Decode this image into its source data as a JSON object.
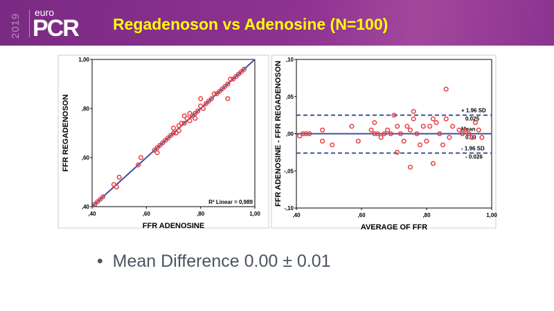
{
  "header": {
    "year": "2019",
    "logo_top": "euro",
    "logo_main": "PCR",
    "title": "Regadenoson vs Adenosine (N=100)"
  },
  "bullet": {
    "symbol": "•",
    "text": "Mean Difference 0.00 ± 0.01"
  },
  "chart_data": [
    {
      "type": "scatter",
      "xlabel": "FFR ADENOSINE",
      "ylabel": "FFR REGADENOSON",
      "xlim": [
        0.4,
        1.0
      ],
      "ylim": [
        0.4,
        1.0
      ],
      "xticks": [
        ",40",
        ",60",
        ",80",
        "1,00"
      ],
      "yticks": [
        ",40",
        ",60",
        ",80",
        "1,00"
      ],
      "annotation": "R² Linear = 0,989",
      "marker_color": "#e8393c",
      "line_color": "#3a4f9a",
      "fit_line": {
        "x": [
          0.4,
          1.0
        ],
        "y": [
          0.4,
          1.0
        ]
      },
      "points": [
        [
          0.41,
          0.41
        ],
        [
          0.42,
          0.42
        ],
        [
          0.43,
          0.43
        ],
        [
          0.44,
          0.44
        ],
        [
          0.48,
          0.49
        ],
        [
          0.49,
          0.48
        ],
        [
          0.5,
          0.52
        ],
        [
          0.57,
          0.57
        ],
        [
          0.58,
          0.6
        ],
        [
          0.63,
          0.63
        ],
        [
          0.64,
          0.64
        ],
        [
          0.64,
          0.62
        ],
        [
          0.65,
          0.65
        ],
        [
          0.66,
          0.66
        ],
        [
          0.67,
          0.67
        ],
        [
          0.68,
          0.68
        ],
        [
          0.69,
          0.69
        ],
        [
          0.7,
          0.7
        ],
        [
          0.7,
          0.72
        ],
        [
          0.71,
          0.7
        ],
        [
          0.72,
          0.73
        ],
        [
          0.72,
          0.71
        ],
        [
          0.73,
          0.74
        ],
        [
          0.74,
          0.77
        ],
        [
          0.74,
          0.74
        ],
        [
          0.75,
          0.76
        ],
        [
          0.76,
          0.75
        ],
        [
          0.76,
          0.78
        ],
        [
          0.77,
          0.77
        ],
        [
          0.78,
          0.78
        ],
        [
          0.78,
          0.76
        ],
        [
          0.79,
          0.79
        ],
        [
          0.8,
          0.81
        ],
        [
          0.8,
          0.84
        ],
        [
          0.81,
          0.8
        ],
        [
          0.82,
          0.82
        ],
        [
          0.83,
          0.83
        ],
        [
          0.84,
          0.84
        ],
        [
          0.85,
          0.86
        ],
        [
          0.86,
          0.86
        ],
        [
          0.87,
          0.87
        ],
        [
          0.88,
          0.88
        ],
        [
          0.89,
          0.89
        ],
        [
          0.9,
          0.9
        ],
        [
          0.9,
          0.84
        ],
        [
          0.91,
          0.92
        ],
        [
          0.92,
          0.92
        ],
        [
          0.93,
          0.93
        ],
        [
          0.94,
          0.94
        ],
        [
          0.95,
          0.95
        ],
        [
          0.96,
          0.96
        ]
      ]
    },
    {
      "type": "scatter",
      "xlabel": "AVERAGE OF FFR",
      "ylabel": "FFR ADENOSINE - FFR REGADENOSON",
      "xlim": [
        0.4,
        1.0
      ],
      "ylim": [
        -0.1,
        0.1
      ],
      "xticks": [
        ",40",
        ",60",
        ",80",
        "1,00"
      ],
      "yticks": [
        ",10",
        ",05",
        ",00",
        "-,05",
        "-,10"
      ],
      "reference_lines": [
        {
          "label": "+ 1.96 SD",
          "value_label": "0.025",
          "y": 0.025,
          "style": "dashed"
        },
        {
          "label": "Mean",
          "value_label": "0.00",
          "y": 0.0,
          "style": "solid"
        },
        {
          "label": "- 1.96 SD",
          "value_label": "- 0.026",
          "y": -0.026,
          "style": "dashed"
        }
      ],
      "marker_color": "#e8393c",
      "line_color": "#3a4f9a",
      "points": [
        [
          0.41,
          -0.003
        ],
        [
          0.42,
          0
        ],
        [
          0.43,
          0
        ],
        [
          0.44,
          0
        ],
        [
          0.48,
          0.005
        ],
        [
          0.48,
          -0.01
        ],
        [
          0.51,
          -0.015
        ],
        [
          0.57,
          0.01
        ],
        [
          0.59,
          -0.01
        ],
        [
          0.63,
          0.005
        ],
        [
          0.64,
          0
        ],
        [
          0.64,
          0.015
        ],
        [
          0.65,
          0
        ],
        [
          0.66,
          -0.005
        ],
        [
          0.67,
          0
        ],
        [
          0.68,
          0.005
        ],
        [
          0.69,
          0
        ],
        [
          0.7,
          0.025
        ],
        [
          0.71,
          0.01
        ],
        [
          0.71,
          -0.025
        ],
        [
          0.72,
          0
        ],
        [
          0.73,
          -0.01
        ],
        [
          0.74,
          0.01
        ],
        [
          0.75,
          0.005
        ],
        [
          0.75,
          -0.045
        ],
        [
          0.76,
          0.03
        ],
        [
          0.76,
          0.02
        ],
        [
          0.77,
          0
        ],
        [
          0.78,
          -0.015
        ],
        [
          0.79,
          0.01
        ],
        [
          0.8,
          -0.01
        ],
        [
          0.81,
          0.01
        ],
        [
          0.82,
          -0.04
        ],
        [
          0.82,
          0.02
        ],
        [
          0.83,
          0.015
        ],
        [
          0.84,
          0
        ],
        [
          0.85,
          -0.015
        ],
        [
          0.86,
          0.06
        ],
        [
          0.86,
          0.02
        ],
        [
          0.87,
          -0.005
        ],
        [
          0.88,
          0.01
        ],
        [
          0.9,
          0.005
        ],
        [
          0.91,
          0
        ],
        [
          0.92,
          0.005
        ],
        [
          0.93,
          0
        ],
        [
          0.94,
          -0.005
        ],
        [
          0.95,
          0.015
        ],
        [
          0.96,
          0.005
        ],
        [
          0.97,
          -0.005
        ]
      ]
    }
  ]
}
